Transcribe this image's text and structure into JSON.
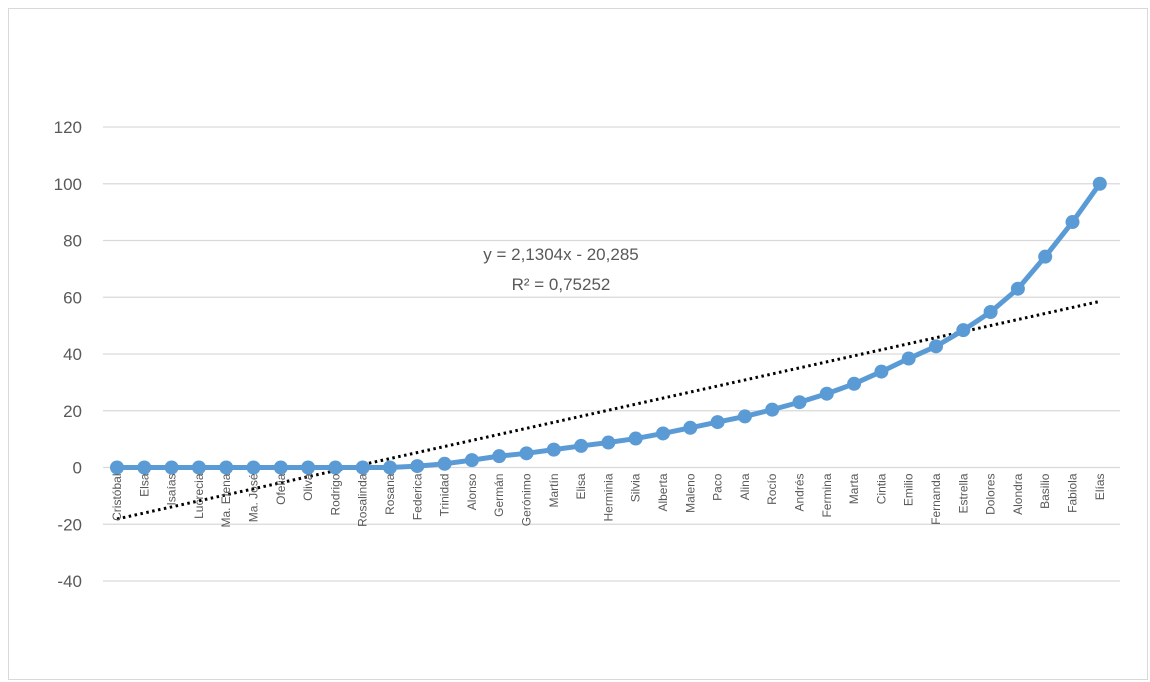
{
  "chart_data": {
    "type": "line",
    "title": "",
    "xlabel": "",
    "ylabel": "",
    "ylim": [
      -40,
      120
    ],
    "yticks": [
      -40,
      -20,
      0,
      20,
      40,
      60,
      80,
      100,
      120
    ],
    "grid": true,
    "legend": "none",
    "categories": [
      "Cristóbal",
      "Elsa",
      "Isaías",
      "Lucrecia",
      "Ma. Elena",
      "Ma. José",
      "Ofelia",
      "Oliva",
      "Rodrigo",
      "Rosalinda",
      "Rosana",
      "Federica",
      "Trinidad",
      "Alonso",
      "Germán",
      "Gerónimo",
      "Martín",
      "Elisa",
      "Herminia",
      "Silvia",
      "Alberta",
      "Maleno",
      "Paco",
      "Alina",
      "Rocío",
      "Andrés",
      "Fermina",
      "Marta",
      "Cintia",
      "Emilio",
      "Fernanda",
      "Estrella",
      "Dolores",
      "Alondra",
      "Basilio",
      "Fabiola",
      "Elías"
    ],
    "series": [
      {
        "values": [
          0,
          0,
          0,
          0,
          0,
          0,
          0,
          0,
          0,
          0,
          0,
          0.5,
          1.3,
          2.6,
          4,
          5,
          6.3,
          7.6,
          8.8,
          10.2,
          12,
          14,
          16,
          18,
          20.4,
          23,
          26,
          29.5,
          33.8,
          38.4,
          42.7,
          48.4,
          54.8,
          63,
          74.3,
          86.5,
          100
        ],
        "color": "#5b9bd5"
      }
    ],
    "trendline": {
      "type": "linear",
      "slope": 2.1304,
      "intercept": -20.285,
      "color": "#000000",
      "style": "dotted",
      "equation_label": "y = 2,1304x - 20,285",
      "r2_label": "R² = 0,75252"
    }
  }
}
